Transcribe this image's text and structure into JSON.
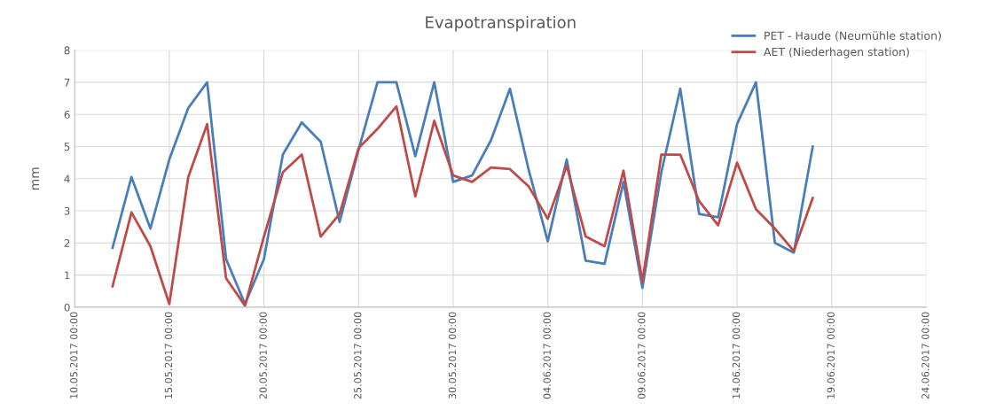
{
  "chart_data": {
    "type": "line",
    "title": "Evapotranspiration",
    "ylabel": "mm",
    "x": [
      "2017-05-12",
      "2017-05-13",
      "2017-05-14",
      "2017-05-15",
      "2017-05-16",
      "2017-05-17",
      "2017-05-18",
      "2017-05-19",
      "2017-05-20",
      "2017-05-21",
      "2017-05-22",
      "2017-05-23",
      "2017-05-24",
      "2017-05-25",
      "2017-05-26",
      "2017-05-27",
      "2017-05-28",
      "2017-05-29",
      "2017-05-30",
      "2017-05-31",
      "2017-06-01",
      "2017-06-02",
      "2017-06-03",
      "2017-06-04",
      "2017-06-05",
      "2017-06-06",
      "2017-06-07",
      "2017-06-08",
      "2017-06-09",
      "2017-06-10",
      "2017-06-11",
      "2017-06-12",
      "2017-06-13",
      "2017-06-14",
      "2017-06-15",
      "2017-06-16",
      "2017-06-17",
      "2017-06-18"
    ],
    "series": [
      {
        "name": "PET - Haude (Neumühle station)",
        "color": "#4a7ebb",
        "values": [
          1.85,
          4.05,
          2.45,
          4.6,
          6.2,
          7.0,
          1.5,
          0.1,
          1.5,
          4.75,
          5.75,
          5.15,
          2.65,
          4.9,
          7.0,
          7.0,
          4.7,
          7.0,
          3.9,
          4.1,
          5.2,
          6.8,
          4.25,
          2.05,
          4.6,
          1.45,
          1.35,
          3.9,
          0.6,
          4.2,
          6.8,
          2.9,
          2.8,
          5.7,
          7.0,
          2.0,
          1.7,
          5.0
        ]
      },
      {
        "name": "AET (Niederhagen station)",
        "color": "#be4b48",
        "values": [
          0.65,
          2.95,
          1.9,
          0.1,
          4.05,
          5.7,
          0.9,
          0.05,
          2.2,
          4.2,
          4.75,
          2.2,
          2.9,
          4.95,
          5.55,
          6.25,
          3.45,
          5.8,
          4.1,
          3.9,
          4.35,
          4.3,
          3.75,
          2.75,
          4.4,
          2.2,
          1.9,
          4.25,
          0.8,
          4.75,
          4.75,
          3.3,
          2.55,
          4.5,
          3.05,
          2.45,
          1.75,
          3.4
        ]
      }
    ],
    "xlim": [
      "2017-05-10",
      "2017-06-24"
    ],
    "xticks": [
      {
        "value": "2017-05-10",
        "label": "10.05.2017 00:00"
      },
      {
        "value": "2017-05-15",
        "label": "15.05.2017 00:00"
      },
      {
        "value": "2017-05-20",
        "label": "20.05.2017 00:00"
      },
      {
        "value": "2017-05-25",
        "label": "25.05.2017 00:00"
      },
      {
        "value": "2017-05-30",
        "label": "30.05.2017 00:00"
      },
      {
        "value": "2017-06-04",
        "label": "04.06.2017 00:00"
      },
      {
        "value": "2017-06-09",
        "label": "09.06.2017 00:00"
      },
      {
        "value": "2017-06-14",
        "label": "14.06.2017 00:00"
      },
      {
        "value": "2017-06-19",
        "label": "19.06.2017 00:00"
      },
      {
        "value": "2017-06-24",
        "label": "24.06.2017 00:00"
      }
    ],
    "ylim": [
      0,
      8
    ],
    "yticks": [
      0,
      1,
      2,
      3,
      4,
      5,
      6,
      7,
      8
    ],
    "grid": true,
    "legend": "top right",
    "marker": "none",
    "line_style": "solid"
  }
}
